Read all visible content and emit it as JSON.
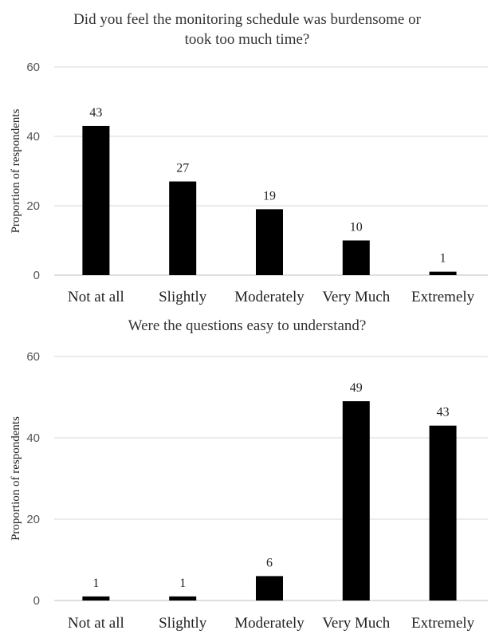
{
  "chart_data": [
    {
      "type": "bar",
      "title": "Did you feel the monitoring schedule was burdensome or took too much time?",
      "title_lines": [
        "Did you feel the monitoring schedule was burdensome or",
        "took too much time?"
      ],
      "categories": [
        "Not at all",
        "Slightly",
        "Moderately",
        "Very Much",
        "Extremely"
      ],
      "values": [
        43,
        27,
        19,
        10,
        1
      ],
      "ylabel": "Proportion of respondents",
      "xlabel": "",
      "ylim": [
        0,
        60
      ],
      "yticks": [
        0,
        20,
        40,
        60
      ],
      "grid": true,
      "bar_color": "#000000"
    },
    {
      "type": "bar",
      "title": "Were the questions easy to understand?",
      "title_lines": [
        "Were the questions  easy to understand?"
      ],
      "categories": [
        "Not at all",
        "Slightly",
        "Moderately",
        "Very Much",
        "Extremely"
      ],
      "values": [
        1,
        1,
        6,
        49,
        43
      ],
      "ylabel": "Proportion of respondents",
      "xlabel": "",
      "ylim": [
        0,
        60
      ],
      "yticks": [
        0,
        20,
        40,
        60
      ],
      "grid": true,
      "bar_color": "#000000"
    }
  ]
}
